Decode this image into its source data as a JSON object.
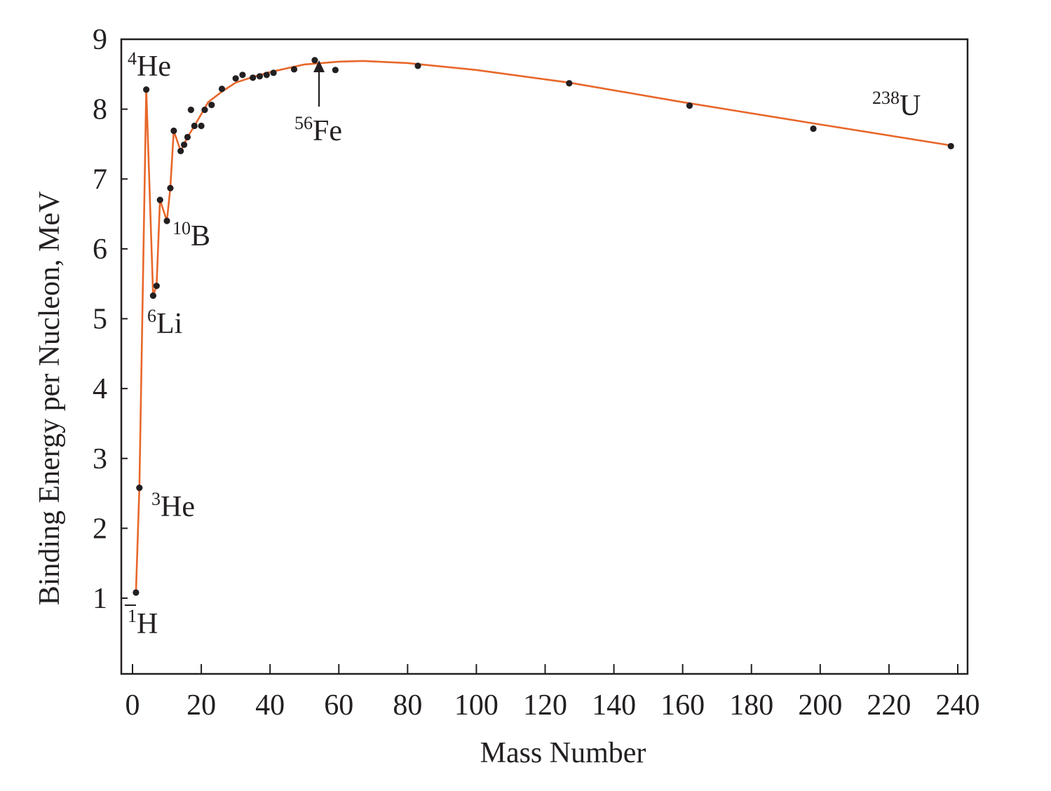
{
  "chart_data": {
    "type": "scatter",
    "title": "",
    "xlabel": "Mass Number",
    "ylabel": "Binding Energy per Nucleon, MeV",
    "xlim": [
      -3,
      243
    ],
    "ylim": [
      0,
      9
    ],
    "x_ticks": [
      0,
      20,
      40,
      60,
      80,
      100,
      120,
      140,
      160,
      180,
      200,
      220,
      240
    ],
    "y_ticks": [
      1,
      2,
      3,
      4,
      5,
      6,
      7,
      8,
      9
    ],
    "grid": false,
    "legend": "none",
    "colors": {
      "curve": "#e8672a",
      "points": "#231f20",
      "axes": "#231f20"
    },
    "points": [
      {
        "x": 1,
        "y": 1.08
      },
      {
        "x": 2,
        "y": 2.58
      },
      {
        "x": 4,
        "y": 8.28
      },
      {
        "x": 6,
        "y": 5.33
      },
      {
        "x": 7,
        "y": 5.47
      },
      {
        "x": 8,
        "y": 6.7
      },
      {
        "x": 10,
        "y": 6.4
      },
      {
        "x": 11,
        "y": 6.87
      },
      {
        "x": 12,
        "y": 7.69
      },
      {
        "x": 14,
        "y": 7.4
      },
      {
        "x": 15,
        "y": 7.49
      },
      {
        "x": 16,
        "y": 7.6
      },
      {
        "x": 17,
        "y": 7.99
      },
      {
        "x": 18,
        "y": 7.76
      },
      {
        "x": 20,
        "y": 7.76
      },
      {
        "x": 21,
        "y": 7.99
      },
      {
        "x": 23,
        "y": 8.06
      },
      {
        "x": 26,
        "y": 8.29
      },
      {
        "x": 30,
        "y": 8.44
      },
      {
        "x": 32,
        "y": 8.49
      },
      {
        "x": 35,
        "y": 8.45
      },
      {
        "x": 37,
        "y": 8.47
      },
      {
        "x": 39,
        "y": 8.49
      },
      {
        "x": 41,
        "y": 8.52
      },
      {
        "x": 47,
        "y": 8.57
      },
      {
        "x": 53,
        "y": 8.7
      },
      {
        "x": 59,
        "y": 8.56
      },
      {
        "x": 83,
        "y": 8.62
      },
      {
        "x": 127,
        "y": 8.37
      },
      {
        "x": 162,
        "y": 8.05
      },
      {
        "x": 198,
        "y": 7.72
      },
      {
        "x": 238,
        "y": 7.47
      }
    ],
    "curve": [
      {
        "x": 1,
        "y": 1.08
      },
      {
        "x": 2,
        "y": 2.58
      },
      {
        "x": 4,
        "y": 8.28
      },
      {
        "x": 6,
        "y": 5.33
      },
      {
        "x": 7,
        "y": 5.47
      },
      {
        "x": 8,
        "y": 6.7
      },
      {
        "x": 10,
        "y": 6.4
      },
      {
        "x": 11,
        "y": 6.87
      },
      {
        "x": 12,
        "y": 7.69
      },
      {
        "x": 14,
        "y": 7.4
      },
      {
        "x": 16,
        "y": 7.6
      },
      {
        "x": 18,
        "y": 7.76
      },
      {
        "x": 20,
        "y": 7.93
      },
      {
        "x": 22,
        "y": 8.1
      },
      {
        "x": 26,
        "y": 8.25
      },
      {
        "x": 30,
        "y": 8.38
      },
      {
        "x": 35,
        "y": 8.46
      },
      {
        "x": 40,
        "y": 8.53
      },
      {
        "x": 50,
        "y": 8.64
      },
      {
        "x": 60,
        "y": 8.68
      },
      {
        "x": 67,
        "y": 8.69
      },
      {
        "x": 80,
        "y": 8.66
      },
      {
        "x": 100,
        "y": 8.56
      },
      {
        "x": 127,
        "y": 8.38
      },
      {
        "x": 160,
        "y": 8.1
      },
      {
        "x": 200,
        "y": 7.78
      },
      {
        "x": 238,
        "y": 7.48
      }
    ],
    "annotations": [
      {
        "mass": "1",
        "symbol": "H"
      },
      {
        "mass": "3",
        "symbol": "He"
      },
      {
        "mass": "4",
        "symbol": "He"
      },
      {
        "mass": "6",
        "symbol": "Li"
      },
      {
        "mass": "10",
        "symbol": "B"
      },
      {
        "mass": "56",
        "symbol": "Fe"
      },
      {
        "mass": "238",
        "symbol": "U"
      }
    ]
  }
}
